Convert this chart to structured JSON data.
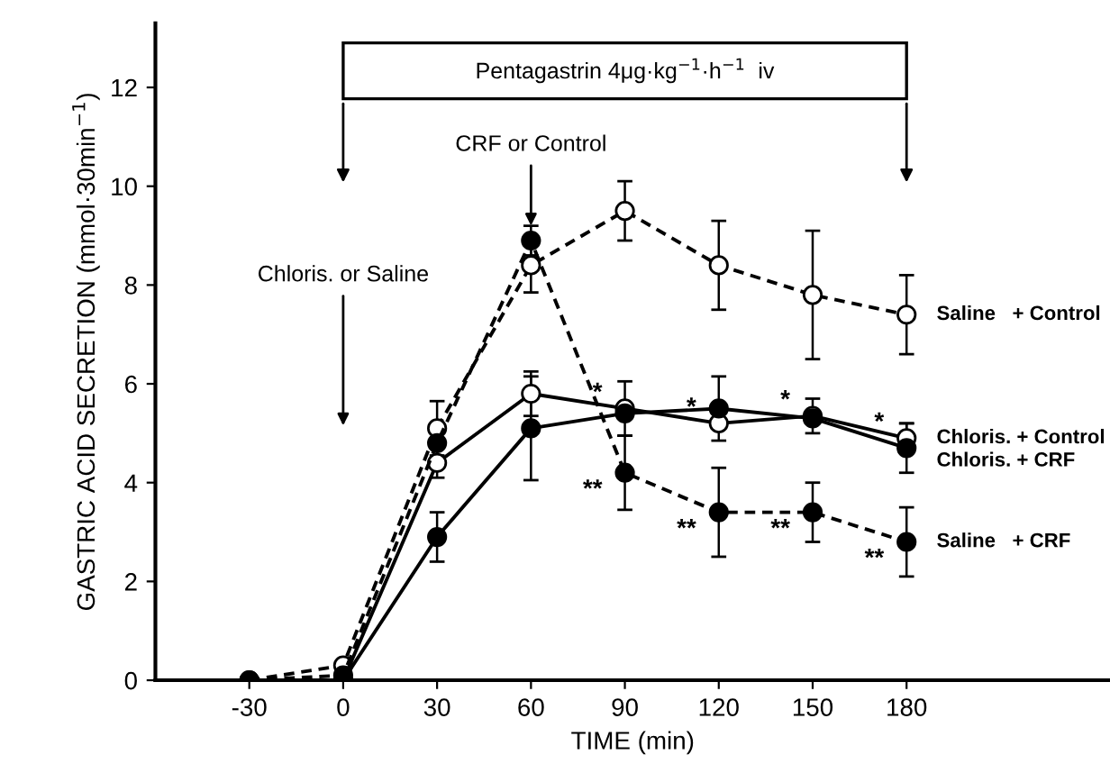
{
  "chart_data": {
    "type": "line",
    "xlabel": "TIME (min)",
    "ylabel": "GASTRIC ACID SECRETION (mmol·30min$^{−1}$)",
    "x": [
      -30,
      0,
      30,
      60,
      90,
      120,
      150,
      180
    ],
    "xlim": [
      -60,
      245
    ],
    "ylim": [
      0,
      13.3
    ],
    "xticks": [
      -30,
      0,
      30,
      60,
      90,
      120,
      150,
      180
    ],
    "yticks": [
      0,
      2,
      4,
      6,
      8,
      10,
      12
    ],
    "grid": false,
    "legend": false,
    "marker": "circle",
    "series": [
      {
        "name": "Saline   + Control",
        "color": "#000000",
        "line_style": "dashed",
        "values": [
          0,
          0.3,
          5.1,
          8.4,
          9.5,
          8.4,
          7.8,
          7.4
        ],
        "errors": [
          null,
          null,
          0.55,
          0.55,
          0.6,
          0.9,
          1.3,
          0.8
        ]
      },
      {
        "name": "Chloris. + Control",
        "color": "#000000",
        "line_style": "solid",
        "values": [
          null,
          0,
          4.4,
          5.8,
          5.5,
          5.2,
          5.35,
          4.9
        ],
        "errors": [
          null,
          null,
          0.3,
          0.45,
          0.55,
          null,
          0.35,
          0.3
        ]
      },
      {
        "name": "Chloris. + CRF",
        "color": "#000000",
        "line_style": "solid",
        "values": [
          null,
          0,
          2.9,
          5.1,
          5.4,
          5.5,
          5.3,
          4.7
        ],
        "errors": [
          null,
          null,
          0.5,
          1.05,
          null,
          0.65,
          null,
          0.5
        ]
      },
      {
        "name": "Saline   + CRF",
        "color": "#000000",
        "line_style": "dashed",
        "values": [
          0,
          0.1,
          4.8,
          8.9,
          4.2,
          3.4,
          3.4,
          2.8
        ],
        "errors": [
          null,
          null,
          null,
          0.3,
          0.75,
          0.9,
          0.6,
          0.7
        ]
      }
    ],
    "annotations": [
      "Pentagastrin 4μg·kg$^{−1}$·h$^{−1}$  iv",
      "Chloris. or Saline",
      {
        "text": "CRF or Control",
        "x": 60,
        "y": 9.2
      },
      {
        "text": "*",
        "x": 90,
        "y": 5.5
      },
      {
        "text": "*",
        "x": 120,
        "y": 5.2
      },
      {
        "text": "*",
        "x": 150,
        "y": 5.35
      },
      {
        "text": "*",
        "x": 180,
        "y": 4.9
      },
      {
        "text": "**",
        "x": 90,
        "y": 4.2
      },
      {
        "text": "**",
        "x": 120,
        "y": 3.4
      },
      {
        "text": "**",
        "x": 150,
        "y": 3.4
      },
      {
        "text": "**",
        "x": 180,
        "y": 2.8
      }
    ]
  }
}
